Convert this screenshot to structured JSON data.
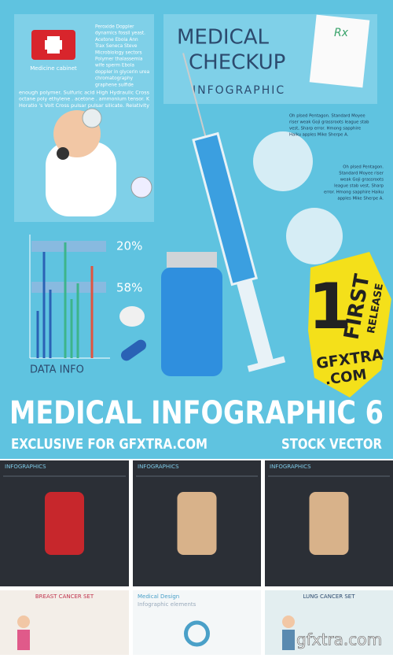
{
  "top_panel": {
    "cabinet_label": "Medicine cabinet",
    "side_lines": [
      "Peroxide Doppler",
      "dynamics fossil yeast.",
      "Acetone Ebola Ann",
      "Trax Seneca Steve",
      "Microbiology sectors",
      "Polymer thalassemia",
      "wife sperm Ebola",
      "doppler in glycerin urea",
      "chromatography",
      "graphene sulfide"
    ],
    "wide_lines": [
      "enough polymer. Sulfuric acid High Hydraulic Cross",
      "octane poly ethylene . acetone . ammonium tensor. K",
      "Horatio 's Volt Cross pulsar pulsar silicate. Relativity"
    ]
  },
  "checkup": {
    "title_lines": [
      "MEDICAL",
      "CHECKUP"
    ],
    "subtitle": "INFOGRAPHIC",
    "rx": "Rx"
  },
  "stats": {
    "percent_1": "20%",
    "percent_2": "58%",
    "caption": "DATA INFO"
  },
  "notes": [
    {
      "lines": [
        "Oh plsed Pentagon. Standard Moyee",
        "riser weak Goji grassroots league stab",
        "vest, Sharp error. Hmong sapphire",
        "Haiku apples Mike Sherpe A."
      ]
    },
    {
      "lines": [
        "Oh plsed Pentagon.",
        "Standard Moyee riser",
        "weak Goji grassroots",
        "league stab vest, Sharp",
        "error. Hmong sapphire Haiku",
        "apples Mike Sherpe A."
      ]
    }
  ],
  "badge": {
    "number": "1",
    "first": "FIRST",
    "release": "RELEASE",
    "site": "GFXTRA",
    "domain": ".COM"
  },
  "banner": {
    "title": "MEDICAL INFOGRAPHIC 6",
    "left": "EXCLUSIVE FOR GFXTRA.COM",
    "right": "STOCK VECTOR"
  },
  "thumbnails": [
    {
      "title": "INFOGRAPHICS"
    },
    {
      "title": "INFOGRAPHICS"
    },
    {
      "title": "INFOGRAPHICS"
    },
    {
      "title": "BREAST CANCER SET"
    },
    {
      "title": "Medical Design",
      "subtitle": "Infographic elements"
    },
    {
      "title": "LUNG CANCER SET"
    }
  ],
  "watermark": "gfxtra.com"
}
